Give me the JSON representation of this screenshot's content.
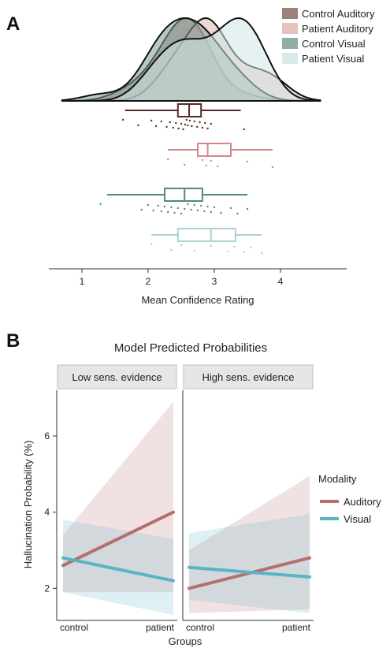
{
  "panel_a_letter": "A",
  "panel_b_letter": "B",
  "chart_data": [
    {
      "type": "density-boxplot",
      "xlabel": "Mean Confidence Rating",
      "xlim": [
        0.5,
        5.0
      ],
      "xticks": [
        1,
        2,
        3,
        4
      ],
      "xtick_labels": [
        "1",
        "2",
        "3",
        "4"
      ],
      "legend_position": "top-right",
      "series": [
        {
          "name": "Control Auditory",
          "color": "#8c6a64",
          "box_color": "#5a2a28",
          "box": {
            "min": 1.65,
            "q1": 2.45,
            "median": 2.62,
            "q3": 2.8,
            "max": 3.4
          },
          "density_peak": 2.6,
          "points": [
            1.62,
            1.85,
            2.05,
            2.12,
            2.2,
            2.28,
            2.33,
            2.38,
            2.42,
            2.46,
            2.5,
            2.53,
            2.56,
            2.58,
            2.6,
            2.63,
            2.66,
            2.7,
            2.74,
            2.78,
            2.82,
            2.86,
            2.9,
            2.95,
            3.45
          ]
        },
        {
          "name": "Patient Auditory",
          "color": "#dfb8b2",
          "box_color": "#d08a86",
          "box": {
            "min": 2.3,
            "q1": 2.75,
            "median": 2.9,
            "q3": 3.25,
            "max": 3.88
          },
          "density_peak": 2.85,
          "points": [
            2.3,
            2.55,
            2.82,
            2.88,
            2.95,
            3.05,
            3.5,
            3.88
          ]
        },
        {
          "name": "Control Visual",
          "color": "#7f9e96",
          "box_color": "#4f8a80",
          "box": {
            "min": 1.38,
            "q1": 2.25,
            "median": 2.55,
            "q3": 2.82,
            "max": 3.5
          },
          "density_peak": 2.45,
          "points": [
            1.28,
            1.9,
            2.0,
            2.08,
            2.15,
            2.2,
            2.25,
            2.3,
            2.35,
            2.4,
            2.45,
            2.5,
            2.55,
            2.6,
            2.65,
            2.7,
            2.75,
            2.8,
            2.85,
            2.9,
            2.95,
            3.0,
            3.1,
            3.25,
            3.35,
            3.5
          ]
        },
        {
          "name": "Patient Visual",
          "color": "#cfe7e6",
          "box_color": "#a8d4d3",
          "box": {
            "min": 2.05,
            "q1": 2.45,
            "median": 2.95,
            "q3": 3.32,
            "max": 3.72
          },
          "density_peak": 3.2,
          "points": [
            2.05,
            2.35,
            2.5,
            2.7,
            2.95,
            3.2,
            3.3,
            3.45,
            3.55,
            3.72
          ]
        }
      ]
    },
    {
      "type": "line",
      "title": "Model Predicted Probabilities",
      "xlabel": "Groups",
      "ylabel": "Hallucination Probability (%)",
      "ylim": [
        1.2,
        7.2
      ],
      "yticks": [
        2,
        4,
        6
      ],
      "ytick_labels": [
        "2",
        "4",
        "6"
      ],
      "categories": [
        "control",
        "patient"
      ],
      "legend_title": "Modality",
      "legend_position": "right",
      "series_legend": [
        {
          "name": "Auditory",
          "color": "#b5706e"
        },
        {
          "name": "Visual",
          "color": "#5ab4c4"
        }
      ],
      "facets": [
        {
          "label": "Low sens. evidence",
          "series": [
            {
              "name": "Auditory",
              "values": [
                2.6,
                4.0
              ],
              "lower": [
                1.9,
                1.9
              ],
              "upper": [
                3.4,
                6.9
              ]
            },
            {
              "name": "Visual",
              "values": [
                2.8,
                2.2
              ],
              "lower": [
                1.9,
                1.3
              ],
              "upper": [
                3.8,
                3.3
              ]
            }
          ]
        },
        {
          "label": "High sens. evidence",
          "series": [
            {
              "name": "Auditory",
              "values": [
                2.0,
                2.8
              ],
              "lower": [
                1.35,
                1.45
              ],
              "upper": [
                3.0,
                4.95
              ]
            },
            {
              "name": "Visual",
              "values": [
                2.55,
                2.3
              ],
              "lower": [
                1.7,
                1.35
              ],
              "upper": [
                3.45,
                3.95
              ]
            }
          ]
        }
      ]
    }
  ]
}
